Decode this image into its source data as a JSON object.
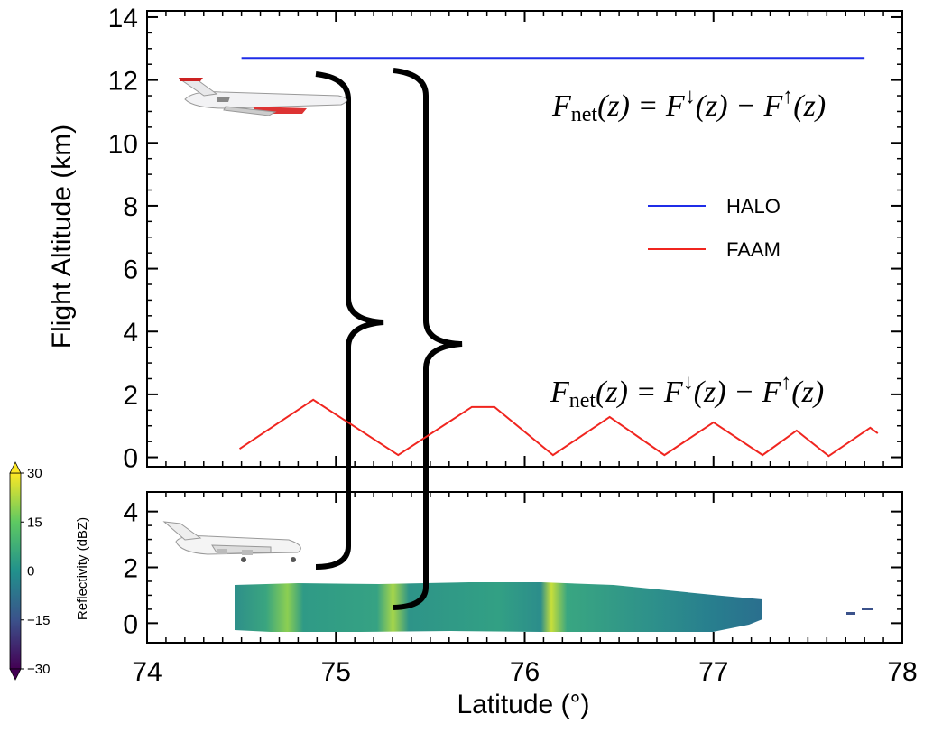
{
  "chart_data": [
    {
      "type": "line",
      "ylabel": "Flight Altitude (km)",
      "xlim": [
        74,
        78
      ],
      "xticks": [
        74,
        75,
        76,
        77,
        78
      ],
      "ylim": [
        -0.3,
        14.2
      ],
      "yticks": [
        0,
        2,
        4,
        6,
        8,
        10,
        12,
        14
      ],
      "legend": "right",
      "series": [
        {
          "name": "HALO",
          "color": "#1f2de8",
          "x": [
            74.5,
            77.8
          ],
          "values": [
            12.7,
            12.7
          ]
        },
        {
          "name": "FAAM",
          "color": "#f0251f",
          "x": [
            74.49,
            74.88,
            75.33,
            75.72,
            75.84,
            76.15,
            76.45,
            76.74,
            77.0,
            77.26,
            77.44,
            77.61,
            77.83,
            77.87
          ],
          "values": [
            0.27,
            1.83,
            0.07,
            1.6,
            1.6,
            0.07,
            1.28,
            0.07,
            1.11,
            0.07,
            0.85,
            0.04,
            0.94,
            0.76
          ]
        }
      ],
      "annotations": [
        [
          "F",
          "net",
          "(z) = F",
          "↓",
          "(z) − F",
          "↑",
          "(z)"
        ],
        [
          "F",
          "net",
          "(z) = F",
          "↓",
          "(z) − F",
          "↑",
          "(z)"
        ]
      ]
    },
    {
      "type": "heatmap",
      "xlabel": "Latitude (°)",
      "xlim": [
        74,
        78
      ],
      "xticks": [
        74,
        75,
        76,
        77,
        78
      ],
      "ylim": [
        -0.7,
        4.7
      ],
      "yticks": [
        0,
        2,
        4
      ],
      "colorbar": {
        "label": "Reflectivity (dBZ)",
        "lim": [
          -30,
          30
        ],
        "ticks": [
          30,
          15,
          0,
          {
            "value": -15,
            "label": "−15"
          },
          {
            "value": -30,
            "label": "−30"
          }
        ]
      }
    }
  ]
}
